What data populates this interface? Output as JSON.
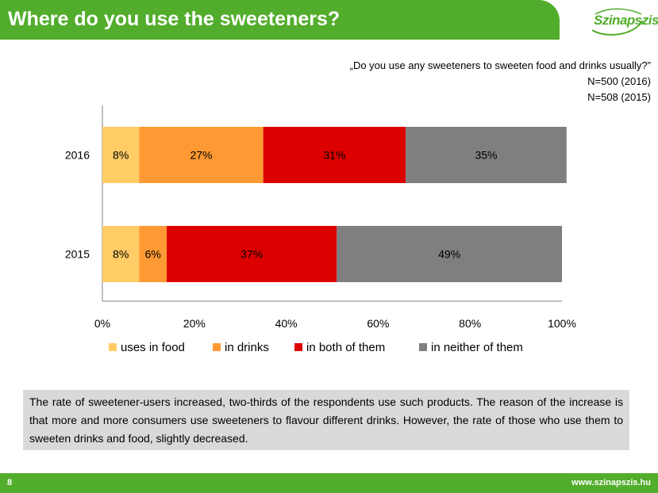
{
  "header": {
    "title": "Where do you use the sweeteners?"
  },
  "logo": {
    "text": "Szinapszis"
  },
  "question": {
    "text": "„Do you use any sweeteners to sweeten food and drinks usually?”",
    "n_2016": "N=500 (2016)",
    "n_2015": "N=508 (2015)"
  },
  "summary": "The rate of sweetener-users increased, two-thirds of the respondents use such products. The reason of the increase is that more and more consumers use sweeteners to flavour different drinks. However, the rate of those who use them to sweeten drinks and food, slightly decreased.",
  "footer": {
    "page_number": "8",
    "website": "www.szinapszis.hu"
  },
  "colors": {
    "brand_green": "#52ad2c",
    "uses_in_food": "#ffcc66",
    "in_drinks": "#ff9933",
    "in_both": "#dd0000",
    "in_neither": "#7f7f7f"
  },
  "chart_data": {
    "type": "bar",
    "orientation": "horizontal",
    "stacked": true,
    "categories": [
      "2016",
      "2015"
    ],
    "series": [
      {
        "name": "uses in food",
        "values": [
          8,
          8
        ],
        "labels": [
          "8%",
          "8%"
        ],
        "color": "#ffcc66"
      },
      {
        "name": "in drinks",
        "values": [
          27,
          6
        ],
        "labels": [
          "27%",
          "6%"
        ],
        "color": "#ff9933"
      },
      {
        "name": "in both of them",
        "values": [
          31,
          37
        ],
        "labels": [
          "31%",
          "37%"
        ],
        "color": "#dd0000"
      },
      {
        "name": "in neither of them",
        "values": [
          35,
          49
        ],
        "labels": [
          "35%",
          "49%"
        ],
        "color": "#7f7f7f"
      }
    ],
    "xlim": [
      0,
      100
    ],
    "xticks": [
      "0%",
      "20%",
      "40%",
      "60%",
      "80%",
      "100%"
    ],
    "legend_position": "bottom",
    "grid": false
  }
}
